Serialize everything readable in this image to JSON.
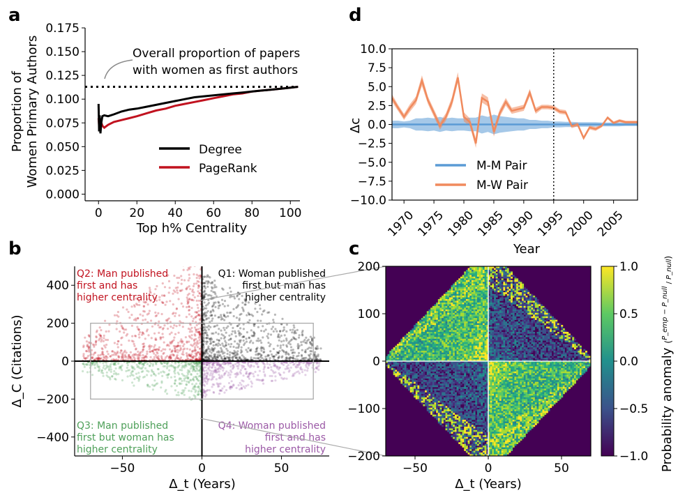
{
  "panels": {
    "a": "a",
    "b": "b",
    "c": "c",
    "d": "d"
  },
  "chart_data": [
    {
      "panel": "a",
      "type": "line",
      "xlabel": "Top h% Centrality",
      "ylabel_line1": "Proportion of",
      "ylabel_line2": "Women Primary Authors",
      "xlim": [
        -7,
        105
      ],
      "ylim": [
        -0.007,
        0.175
      ],
      "xticks": [
        0,
        20,
        40,
        60,
        80,
        100
      ],
      "xtick_labels": [
        "0",
        "20",
        "40",
        "60",
        "80",
        "100"
      ],
      "yticks": [
        0,
        0.025,
        0.05,
        0.075,
        0.1,
        0.125,
        0.15,
        0.175
      ],
      "ytick_labels": [
        "0.000",
        "0.025",
        "0.050",
        "0.075",
        "0.100",
        "0.125",
        "0.150",
        "0.175"
      ],
      "annotation_line1": "Overall proportion of papers",
      "annotation_line2": "with women as first authors",
      "reference_value": 0.113,
      "series": [
        {
          "name": "Degree",
          "color": "#000000",
          "x": [
            0,
            0.3,
            0.6,
            1,
            1.5,
            2,
            3,
            5,
            8,
            12,
            16,
            20,
            25,
            30,
            35,
            40,
            45,
            50,
            55,
            60,
            65,
            70,
            75,
            80,
            85,
            90,
            95,
            100,
            104
          ],
          "y": [
            0.095,
            0.066,
            0.083,
            0.064,
            0.076,
            0.082,
            0.083,
            0.082,
            0.084,
            0.087,
            0.089,
            0.09,
            0.092,
            0.094,
            0.096,
            0.098,
            0.1,
            0.102,
            0.103,
            0.104,
            0.105,
            0.106,
            0.107,
            0.108,
            0.109,
            0.11,
            0.111,
            0.112,
            0.113
          ]
        },
        {
          "name": "PageRank",
          "color": "#c1121f",
          "x": [
            0,
            0.3,
            0.6,
            1,
            1.5,
            2,
            3,
            5,
            8,
            12,
            16,
            20,
            25,
            30,
            35,
            40,
            45,
            50,
            55,
            60,
            65,
            70,
            75,
            80,
            85,
            90,
            95,
            100,
            104
          ],
          "y": [
            0.08,
            0.072,
            0.078,
            0.068,
            0.075,
            0.072,
            0.07,
            0.073,
            0.076,
            0.078,
            0.08,
            0.082,
            0.085,
            0.088,
            0.09,
            0.093,
            0.095,
            0.097,
            0.099,
            0.101,
            0.103,
            0.105,
            0.106,
            0.108,
            0.109,
            0.11,
            0.111,
            0.112,
            0.113
          ]
        }
      ],
      "legend": [
        "Degree",
        "PageRank"
      ],
      "legend_position": "lower-right"
    },
    {
      "panel": "b",
      "type": "scatter",
      "xlabel": "Δ_t (Years)",
      "ylabel": "Δ_C (Citations)",
      "xlim": [
        -80,
        80
      ],
      "ylim": [
        -500,
        500
      ],
      "xticks": [
        -50,
        0,
        50
      ],
      "xtick_labels": [
        "−50",
        "0",
        "50"
      ],
      "yticks": [
        -400,
        -200,
        0,
        200,
        400
      ],
      "ytick_labels": [
        "−400",
        "−200",
        "0",
        "200",
        "400"
      ],
      "zoom_box": {
        "x": [
          -70,
          70
        ],
        "y": [
          -200,
          200
        ]
      },
      "quadrants": [
        {
          "id": "Q1",
          "color": "#000000",
          "lines": [
            "Q1: Woman published",
            "first but man has",
            "higher centrality"
          ]
        },
        {
          "id": "Q2",
          "color": "#c1121f",
          "lines": [
            "Q2: Man published",
            "first and has",
            "higher centrality"
          ]
        },
        {
          "id": "Q3",
          "color": "#4fa05a",
          "lines": [
            "Q3: Man published",
            "first but woman has",
            "higher centrality"
          ]
        },
        {
          "id": "Q4",
          "color": "#9b59a6",
          "lines": [
            "Q4: Woman published",
            "first and has",
            "higher centrality"
          ]
        }
      ]
    },
    {
      "panel": "c",
      "type": "heatmap",
      "xlabel": "Δ_t (Years)",
      "xlim": [
        -70,
        70
      ],
      "ylim": [
        -200,
        200
      ],
      "xticks": [
        -50,
        0,
        50
      ],
      "xtick_labels": [
        "−50",
        "0",
        "50"
      ],
      "yticks": [
        -200,
        -100,
        0,
        100,
        200
      ],
      "ytick_labels": [
        "−200",
        "−100",
        "0",
        "100",
        "200"
      ],
      "colorbar": {
        "label": "Probability anomaly",
        "range": [
          -1,
          1
        ],
        "ticks": [
          -1,
          -0.5,
          0,
          0.5,
          1
        ],
        "tick_labels": [
          "−1.0",
          "−0.5",
          "0.0",
          "0.5",
          "1.0"
        ]
      }
    },
    {
      "panel": "d",
      "type": "line",
      "xlabel": "Year",
      "ylabel": "Δc",
      "xlim": [
        1968,
        2009
      ],
      "ylim": [
        -10,
        10
      ],
      "xticks": [
        1970,
        1975,
        1980,
        1985,
        1990,
        1995,
        2000,
        2005
      ],
      "xtick_labels": [
        "1970",
        "1975",
        "1980",
        "1985",
        "1990",
        "1995",
        "2000",
        "2005"
      ],
      "yticks": [
        -10,
        -7.5,
        -5,
        -2.5,
        0,
        2.5,
        5,
        7.5,
        10
      ],
      "ytick_labels": [
        "−10.0",
        "−7.5",
        "−5.0",
        "−2.5",
        "0.0",
        "2.5",
        "5.0",
        "7.5",
        "10.0"
      ],
      "vline_x": 1995,
      "series": [
        {
          "name": "M-M Pair",
          "color": "#5b9bd5",
          "x": [
            1968,
            1969,
            1970,
            1971,
            1972,
            1973,
            1974,
            1975,
            1976,
            1977,
            1978,
            1979,
            1980,
            1981,
            1982,
            1983,
            1984,
            1985,
            1986,
            1987,
            1988,
            1989,
            1990,
            1991,
            1992,
            1993,
            1994,
            1995,
            1996,
            1997,
            1998,
            1999,
            2000,
            2001,
            2002,
            2003,
            2004,
            2005,
            2006,
            2007,
            2008,
            2009
          ],
          "y": [
            0,
            0,
            0,
            0,
            0,
            0,
            0,
            0,
            0,
            0,
            0,
            0,
            0,
            0,
            0,
            0,
            0,
            0,
            0,
            0,
            0,
            0,
            0,
            0,
            0,
            0,
            0,
            0,
            0,
            0,
            0,
            0,
            0,
            0,
            0,
            0,
            0,
            0,
            0,
            0,
            0,
            0
          ],
          "band": [
            0.5,
            0.5,
            0.4,
            0.5,
            0.8,
            0.8,
            0.9,
            0.8,
            1.0,
            0.8,
            0.9,
            0.8,
            0.8,
            0.9,
            0.9,
            1.2,
            1.0,
            1.3,
            1.1,
            1.0,
            0.9,
            0.8,
            0.8,
            0.6,
            0.6,
            0.5,
            0.5,
            0.4,
            0.4,
            0.35,
            0.35,
            0.3,
            0.3,
            0.3,
            0.3,
            0.25,
            0.25,
            0.25,
            0.25,
            0.2,
            0.2,
            0.2
          ]
        },
        {
          "name": "M-W Pair",
          "color": "#f08a5d",
          "x": [
            1968,
            1969,
            1970,
            1971,
            1972,
            1973,
            1974,
            1975,
            1976,
            1977,
            1978,
            1979,
            1980,
            1981,
            1982,
            1983,
            1984,
            1985,
            1986,
            1987,
            1988,
            1989,
            1990,
            1991,
            1992,
            1993,
            1994,
            1995,
            1996,
            1997,
            1998,
            1999,
            2000,
            2001,
            2002,
            2003,
            2004,
            2005,
            2006,
            2007,
            2008,
            2009
          ],
          "y": [
            3.5,
            2.2,
            1.0,
            2.2,
            3.2,
            5.8,
            3.2,
            1.5,
            -0.2,
            1.0,
            3.0,
            6.2,
            1.0,
            0.3,
            -2.5,
            3.5,
            3.0,
            -1.0,
            1.5,
            3.0,
            1.8,
            2.0,
            2.2,
            4.2,
            1.8,
            2.3,
            2.3,
            2.2,
            1.7,
            1.6,
            -0.2,
            0.0,
            -1.8,
            -0.4,
            -0.6,
            -0.2,
            0.9,
            0.2,
            0.5,
            0.3,
            0.3,
            0.3
          ],
          "band": [
            0.5,
            0.4,
            0.4,
            0.5,
            0.5,
            0.7,
            0.5,
            0.5,
            0.5,
            0.5,
            0.6,
            0.7,
            0.6,
            0.5,
            0.6,
            0.6,
            0.6,
            0.6,
            0.5,
            0.5,
            0.4,
            0.4,
            0.4,
            0.5,
            0.4,
            0.3,
            0.3,
            0.3,
            0.3,
            0.3,
            0.3,
            0.25,
            0.25,
            0.25,
            0.25,
            0.2,
            0.2,
            0.2,
            0.2,
            0.2,
            0.2,
            0.2
          ]
        }
      ],
      "legend": [
        "M-M Pair",
        "M-W Pair"
      ],
      "legend_position": "lower-left"
    }
  ]
}
